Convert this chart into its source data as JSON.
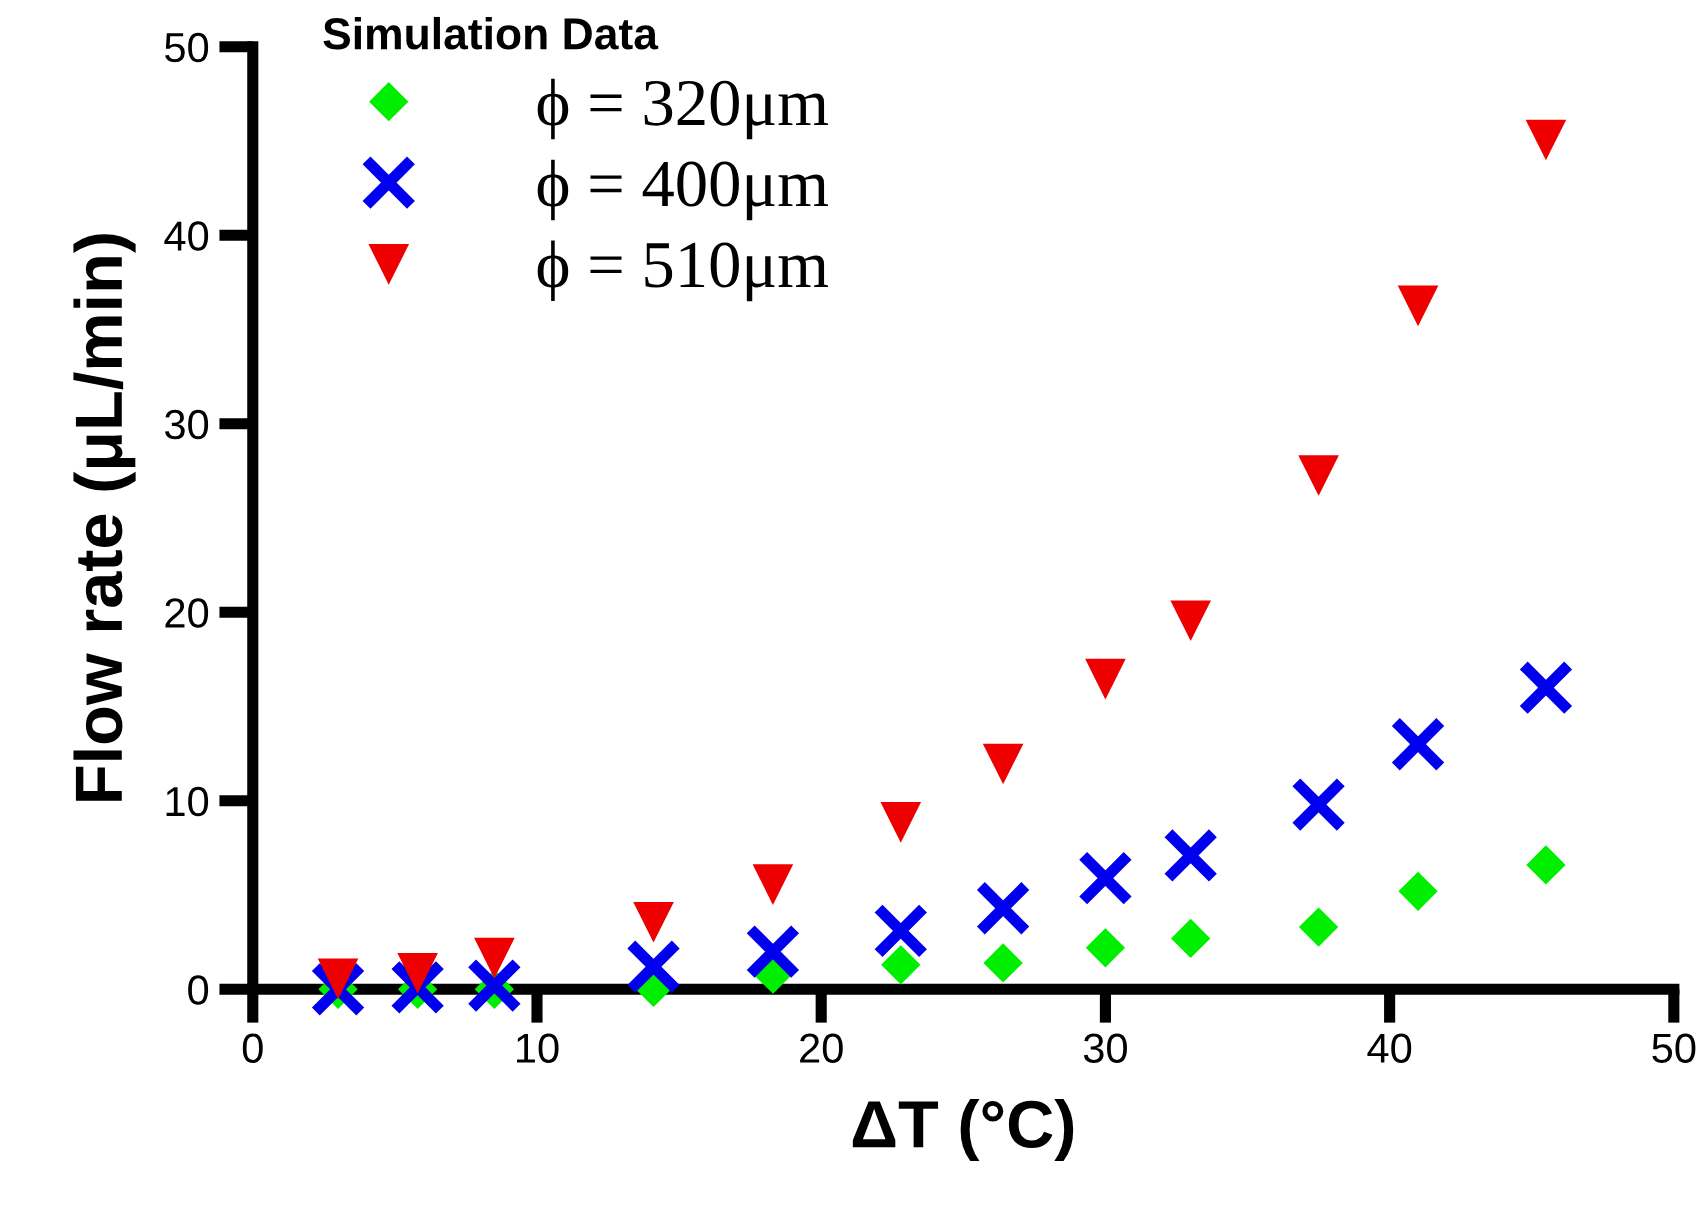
{
  "chart_data": {
    "type": "scatter",
    "xlabel": "ΔT (°C)",
    "ylabel": "Flow rate (μL/min)",
    "legend_title": "Simulation Data",
    "legend": "top left",
    "grid": false,
    "x": [
      3,
      5.8,
      8.5,
      14.1,
      18.3,
      22.8,
      26.4,
      30,
      33,
      37.5,
      41,
      45.5
    ],
    "xlim": [
      0,
      50
    ],
    "xticks": [
      0,
      10,
      20,
      30,
      40,
      50
    ],
    "ylim": [
      0,
      50
    ],
    "yticks": [
      0,
      10,
      20,
      30,
      40,
      50
    ],
    "series": [
      {
        "name": "ϕ = 320μm",
        "color": "#00ee00",
        "marker": "diamond",
        "values": [
          0,
          0,
          0,
          0.1,
          0.8,
          1.3,
          1.4,
          2.2,
          2.7,
          3.3,
          5.2,
          6.6
        ]
      },
      {
        "name": "ϕ = 400μm",
        "color": "#0000ee",
        "marker": "cross",
        "values": [
          0,
          0.1,
          0.2,
          1.2,
          2.0,
          3.1,
          4.3,
          5.9,
          7.1,
          9.8,
          13,
          16
        ]
      },
      {
        "name": "ϕ = 510μm",
        "color": "#ee0000",
        "marker": "triangle",
        "values": [
          0.6,
          0.9,
          1.7,
          3.6,
          5.6,
          8.9,
          12,
          16.5,
          19.6,
          27.3,
          36.3,
          45.1
        ]
      }
    ]
  }
}
